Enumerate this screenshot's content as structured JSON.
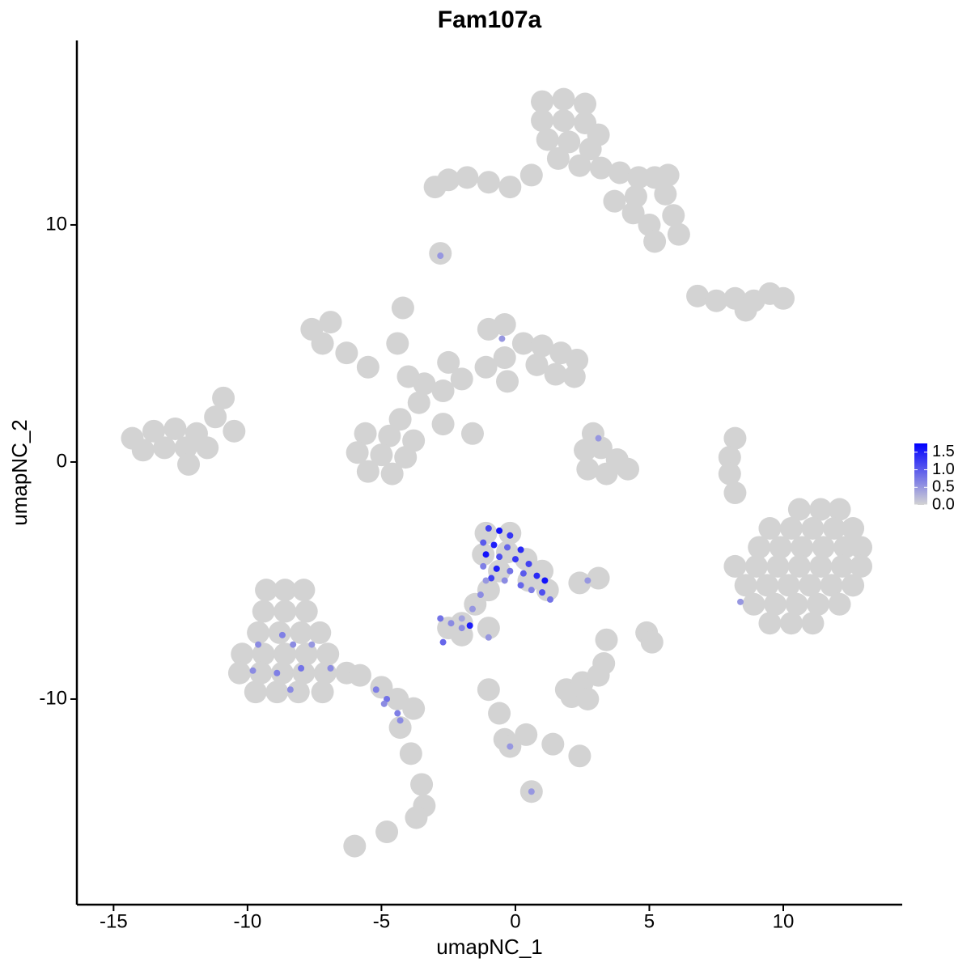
{
  "chart_data": {
    "type": "scatter",
    "title": "Fam107a",
    "x_label": "umapNC_1",
    "y_label": "umapNC_2",
    "xlim": [
      -16.37,
      14.44
    ],
    "ylim": [
      -18.67,
      17.78
    ],
    "xticks": [
      -15,
      -10,
      -5,
      0,
      5,
      10
    ],
    "yticks": [
      -10,
      0,
      10
    ],
    "low_color": "#d3d3d3",
    "high_color": "#0000ff",
    "colorbar_lim": [
      0,
      1.75
    ],
    "colorbar_ticks": [
      {
        "value": 0,
        "label": "0.0"
      },
      0.5,
      {
        "value": 1,
        "label": "1.0"
      },
      1.5
    ],
    "points": [
      {
        "x": 1.0,
        "y": 15.2,
        "value": 0
      },
      {
        "x": 1.8,
        "y": 15.3,
        "value": 0
      },
      {
        "x": 2.6,
        "y": 15.1,
        "value": 0
      },
      {
        "x": 1.0,
        "y": 14.4,
        "value": 0
      },
      {
        "x": 1.8,
        "y": 14.4,
        "value": 0
      },
      {
        "x": 2.6,
        "y": 14.3,
        "value": 0
      },
      {
        "x": 3.1,
        "y": 13.8,
        "value": 0
      },
      {
        "x": 1.2,
        "y": 13.6,
        "value": 0
      },
      {
        "x": 2.0,
        "y": 13.5,
        "value": 0
      },
      {
        "x": 2.8,
        "y": 13.2,
        "value": 0
      },
      {
        "x": 1.6,
        "y": 12.8,
        "value": 0
      },
      {
        "x": 2.4,
        "y": 12.5,
        "value": 0
      },
      {
        "x": 3.2,
        "y": 12.4,
        "value": 0
      },
      {
        "x": 3.9,
        "y": 12.2,
        "value": 0
      },
      {
        "x": 4.6,
        "y": 12.0,
        "value": 0
      },
      {
        "x": 5.2,
        "y": 12.0,
        "value": 0
      },
      {
        "x": 5.7,
        "y": 12.1,
        "value": 0
      },
      {
        "x": 5.6,
        "y": 11.3,
        "value": 0
      },
      {
        "x": 5.9,
        "y": 10.4,
        "value": 0
      },
      {
        "x": 6.1,
        "y": 9.6,
        "value": 0
      },
      {
        "x": 5.0,
        "y": 10.0,
        "value": 0
      },
      {
        "x": 4.4,
        "y": 10.5,
        "value": 0
      },
      {
        "x": 3.7,
        "y": 11.0,
        "value": 0
      },
      {
        "x": 0.6,
        "y": 12.1,
        "value": 0
      },
      {
        "x": -0.2,
        "y": 11.6,
        "value": 0
      },
      {
        "x": -1.0,
        "y": 11.8,
        "value": 0
      },
      {
        "x": -1.8,
        "y": 12.0,
        "value": 0
      },
      {
        "x": -2.5,
        "y": 11.9,
        "value": 0
      },
      {
        "x": -3.0,
        "y": 11.6,
        "value": 0
      },
      {
        "x": 4.5,
        "y": 11.2,
        "value": 0
      },
      {
        "x": 5.2,
        "y": 9.3,
        "value": 0
      },
      {
        "x": -2.8,
        "y": 8.8,
        "value": 0
      },
      {
        "x": -1.0,
        "y": 5.6,
        "value": 0
      },
      {
        "x": -0.4,
        "y": 5.8,
        "value": 0
      },
      {
        "x": 0.3,
        "y": 5.0,
        "value": 0
      },
      {
        "x": 1.0,
        "y": 4.9,
        "value": 0
      },
      {
        "x": 1.7,
        "y": 4.6,
        "value": 0
      },
      {
        "x": 2.3,
        "y": 4.3,
        "value": 0
      },
      {
        "x": 2.2,
        "y": 3.6,
        "value": 0
      },
      {
        "x": 1.5,
        "y": 3.7,
        "value": 0
      },
      {
        "x": 0.8,
        "y": 4.1,
        "value": 0
      },
      {
        "x": -0.4,
        "y": 4.4,
        "value": 0
      },
      {
        "x": -1.1,
        "y": 4.0,
        "value": 0
      },
      {
        "x": -0.3,
        "y": 3.4,
        "value": 0
      },
      {
        "x": -2.0,
        "y": 3.5,
        "value": 0
      },
      {
        "x": -2.7,
        "y": 3.0,
        "value": 0
      },
      {
        "x": -3.4,
        "y": 3.3,
        "value": 0
      },
      {
        "x": -4.0,
        "y": 3.6,
        "value": 0
      },
      {
        "x": -3.6,
        "y": 2.5,
        "value": 0
      },
      {
        "x": -4.3,
        "y": 1.8,
        "value": 0
      },
      {
        "x": -2.7,
        "y": 1.6,
        "value": 0
      },
      {
        "x": -1.6,
        "y": 1.2,
        "value": 0
      },
      {
        "x": -4.2,
        "y": 6.5,
        "value": 0
      },
      {
        "x": -4.4,
        "y": 5.0,
        "value": 0
      },
      {
        "x": -2.5,
        "y": 4.2,
        "value": 0
      },
      {
        "x": -7.6,
        "y": 5.6,
        "value": 0
      },
      {
        "x": -6.9,
        "y": 5.9,
        "value": 0
      },
      {
        "x": -7.2,
        "y": 5.0,
        "value": 0
      },
      {
        "x": -6.3,
        "y": 4.6,
        "value": 0
      },
      {
        "x": -5.5,
        "y": 4.0,
        "value": 0
      },
      {
        "x": -5.6,
        "y": 1.2,
        "value": 0
      },
      {
        "x": -4.7,
        "y": 1.1,
        "value": 0
      },
      {
        "x": -3.8,
        "y": 0.9,
        "value": 0
      },
      {
        "x": -5.9,
        "y": 0.4,
        "value": 0
      },
      {
        "x": -5.0,
        "y": 0.3,
        "value": 0
      },
      {
        "x": -4.1,
        "y": 0.2,
        "value": 0
      },
      {
        "x": -5.5,
        "y": -0.4,
        "value": 0
      },
      {
        "x": -4.6,
        "y": -0.5,
        "value": 0
      },
      {
        "x": -14.3,
        "y": 1.0,
        "value": 0
      },
      {
        "x": -13.5,
        "y": 1.3,
        "value": 0
      },
      {
        "x": -12.7,
        "y": 1.4,
        "value": 0
      },
      {
        "x": -11.9,
        "y": 1.2,
        "value": 0
      },
      {
        "x": -13.9,
        "y": 0.5,
        "value": 0
      },
      {
        "x": -13.1,
        "y": 0.6,
        "value": 0
      },
      {
        "x": -12.3,
        "y": 0.6,
        "value": 0
      },
      {
        "x": -11.5,
        "y": 0.6,
        "value": 0
      },
      {
        "x": -11.2,
        "y": 1.9,
        "value": 0
      },
      {
        "x": -10.9,
        "y": 2.7,
        "value": 0
      },
      {
        "x": -10.5,
        "y": 1.3,
        "value": 0
      },
      {
        "x": -12.2,
        "y": -0.1,
        "value": 0
      },
      {
        "x": 6.8,
        "y": 7.0,
        "value": 0
      },
      {
        "x": 7.5,
        "y": 6.8,
        "value": 0
      },
      {
        "x": 8.2,
        "y": 6.9,
        "value": 0
      },
      {
        "x": 8.9,
        "y": 6.8,
        "value": 0
      },
      {
        "x": 9.5,
        "y": 7.1,
        "value": 0
      },
      {
        "x": 10.0,
        "y": 6.9,
        "value": 0
      },
      {
        "x": 8.6,
        "y": 6.4,
        "value": 0
      },
      {
        "x": 2.9,
        "y": 1.2,
        "value": 0
      },
      {
        "x": 2.6,
        "y": 0.5,
        "value": 0
      },
      {
        "x": 3.2,
        "y": 0.6,
        "value": 0
      },
      {
        "x": 3.8,
        "y": 0.1,
        "value": 0
      },
      {
        "x": 2.7,
        "y": -0.3,
        "value": 0
      },
      {
        "x": 3.4,
        "y": -0.5,
        "value": 0
      },
      {
        "x": 4.2,
        "y": -0.3,
        "value": 0
      },
      {
        "x": 8.2,
        "y": 1.0,
        "value": 0
      },
      {
        "x": 8.0,
        "y": 0.2,
        "value": 0
      },
      {
        "x": 8.0,
        "y": -0.5,
        "value": 0
      },
      {
        "x": 8.2,
        "y": -1.3,
        "value": 0
      },
      {
        "x": 10.6,
        "y": -2.0,
        "value": 0
      },
      {
        "x": 11.4,
        "y": -2.0,
        "value": 0
      },
      {
        "x": 12.1,
        "y": -2.0,
        "value": 0
      },
      {
        "x": 9.5,
        "y": -2.8,
        "value": 0
      },
      {
        "x": 10.3,
        "y": -2.8,
        "value": 0
      },
      {
        "x": 11.1,
        "y": -2.8,
        "value": 0
      },
      {
        "x": 11.9,
        "y": -2.8,
        "value": 0
      },
      {
        "x": 12.6,
        "y": -2.8,
        "value": 0
      },
      {
        "x": 9.1,
        "y": -3.6,
        "value": 0
      },
      {
        "x": 9.9,
        "y": -3.6,
        "value": 0
      },
      {
        "x": 10.7,
        "y": -3.6,
        "value": 0
      },
      {
        "x": 11.5,
        "y": -3.6,
        "value": 0
      },
      {
        "x": 12.3,
        "y": -3.6,
        "value": 0
      },
      {
        "x": 12.9,
        "y": -3.6,
        "value": 0
      },
      {
        "x": 8.2,
        "y": -4.4,
        "value": 0
      },
      {
        "x": 9.0,
        "y": -4.4,
        "value": 0
      },
      {
        "x": 9.8,
        "y": -4.4,
        "value": 0
      },
      {
        "x": 10.6,
        "y": -4.4,
        "value": 0
      },
      {
        "x": 11.4,
        "y": -4.4,
        "value": 0
      },
      {
        "x": 12.2,
        "y": -4.4,
        "value": 0
      },
      {
        "x": 12.9,
        "y": -4.4,
        "value": 0
      },
      {
        "x": 8.6,
        "y": -5.2,
        "value": 0
      },
      {
        "x": 9.4,
        "y": -5.2,
        "value": 0
      },
      {
        "x": 10.2,
        "y": -5.2,
        "value": 0
      },
      {
        "x": 11.0,
        "y": -5.2,
        "value": 0
      },
      {
        "x": 11.8,
        "y": -5.2,
        "value": 0
      },
      {
        "x": 12.6,
        "y": -5.2,
        "value": 0
      },
      {
        "x": 8.9,
        "y": -6.0,
        "value": 0
      },
      {
        "x": 9.7,
        "y": -6.0,
        "value": 0
      },
      {
        "x": 10.5,
        "y": -6.0,
        "value": 0
      },
      {
        "x": 11.3,
        "y": -6.0,
        "value": 0
      },
      {
        "x": 12.1,
        "y": -6.0,
        "value": 0
      },
      {
        "x": 9.5,
        "y": -6.8,
        "value": 0
      },
      {
        "x": 10.3,
        "y": -6.8,
        "value": 0
      },
      {
        "x": 11.1,
        "y": -6.8,
        "value": 0
      },
      {
        "x": -1.1,
        "y": -3.0,
        "value": 0
      },
      {
        "x": -0.2,
        "y": -3.0,
        "value": 0
      },
      {
        "x": -1.2,
        "y": -3.9,
        "value": 0
      },
      {
        "x": -0.3,
        "y": -3.8,
        "value": 0
      },
      {
        "x": 0.4,
        "y": -4.1,
        "value": 0
      },
      {
        "x": 1.0,
        "y": -4.6,
        "value": 0
      },
      {
        "x": -0.6,
        "y": -4.6,
        "value": 0
      },
      {
        "x": 0.5,
        "y": -5.0,
        "value": 0
      },
      {
        "x": 1.2,
        "y": -5.4,
        "value": 0
      },
      {
        "x": -1.0,
        "y": -5.4,
        "value": 0
      },
      {
        "x": -1.5,
        "y": -6.0,
        "value": 0
      },
      {
        "x": -2.0,
        "y": -6.8,
        "value": 0
      },
      {
        "x": -2.5,
        "y": -7.0,
        "value": 0
      },
      {
        "x": -2.0,
        "y": -7.3,
        "value": 0
      },
      {
        "x": -1.0,
        "y": -7.0,
        "value": 0
      },
      {
        "x": 2.4,
        "y": -5.1,
        "value": 0
      },
      {
        "x": 3.1,
        "y": -4.9,
        "value": 0
      },
      {
        "x": -9.3,
        "y": -5.4,
        "value": 0
      },
      {
        "x": -8.6,
        "y": -5.4,
        "value": 0
      },
      {
        "x": -7.9,
        "y": -5.4,
        "value": 0
      },
      {
        "x": -9.4,
        "y": -6.3,
        "value": 0
      },
      {
        "x": -8.6,
        "y": -6.3,
        "value": 0
      },
      {
        "x": -7.8,
        "y": -6.3,
        "value": 0
      },
      {
        "x": -9.6,
        "y": -7.2,
        "value": 0
      },
      {
        "x": -8.8,
        "y": -7.2,
        "value": 0
      },
      {
        "x": -8.0,
        "y": -7.2,
        "value": 0
      },
      {
        "x": -7.3,
        "y": -7.2,
        "value": 0
      },
      {
        "x": -10.2,
        "y": -8.1,
        "value": 0
      },
      {
        "x": -9.4,
        "y": -8.1,
        "value": 0
      },
      {
        "x": -8.6,
        "y": -8.1,
        "value": 0
      },
      {
        "x": -7.8,
        "y": -8.1,
        "value": 0
      },
      {
        "x": -7.0,
        "y": -8.1,
        "value": 0
      },
      {
        "x": -10.3,
        "y": -8.9,
        "value": 0
      },
      {
        "x": -9.5,
        "y": -8.9,
        "value": 0
      },
      {
        "x": -8.7,
        "y": -8.9,
        "value": 0
      },
      {
        "x": -7.9,
        "y": -8.9,
        "value": 0
      },
      {
        "x": -7.1,
        "y": -8.9,
        "value": 0
      },
      {
        "x": -6.3,
        "y": -8.9,
        "value": 0
      },
      {
        "x": -9.7,
        "y": -9.7,
        "value": 0
      },
      {
        "x": -8.9,
        "y": -9.7,
        "value": 0
      },
      {
        "x": -8.1,
        "y": -9.7,
        "value": 0
      },
      {
        "x": -7.2,
        "y": -9.7,
        "value": 0
      },
      {
        "x": -5.8,
        "y": -9.0,
        "value": 0
      },
      {
        "x": -5.0,
        "y": -9.5,
        "value": 0
      },
      {
        "x": -4.4,
        "y": -10.0,
        "value": 0
      },
      {
        "x": -3.8,
        "y": -10.4,
        "value": 0
      },
      {
        "x": -4.3,
        "y": -11.2,
        "value": 0
      },
      {
        "x": -3.9,
        "y": -12.3,
        "value": 0
      },
      {
        "x": -3.5,
        "y": -13.6,
        "value": 0
      },
      {
        "x": -3.4,
        "y": -14.5,
        "value": 0
      },
      {
        "x": -3.7,
        "y": -15.0,
        "value": 0
      },
      {
        "x": -6.0,
        "y": -16.2,
        "value": 0
      },
      {
        "x": -4.8,
        "y": -15.6,
        "value": 0
      },
      {
        "x": -1.0,
        "y": -9.6,
        "value": 0
      },
      {
        "x": -0.6,
        "y": -10.6,
        "value": 0
      },
      {
        "x": -0.4,
        "y": -11.7,
        "value": 0
      },
      {
        "x": 0.4,
        "y": -11.5,
        "value": 0
      },
      {
        "x": 1.4,
        "y": -11.9,
        "value": 0
      },
      {
        "x": 2.4,
        "y": -12.4,
        "value": 0
      },
      {
        "x": -0.2,
        "y": -12.0,
        "value": 0
      },
      {
        "x": 0.6,
        "y": -13.9,
        "value": 0
      },
      {
        "x": 1.9,
        "y": -9.6,
        "value": 0
      },
      {
        "x": 2.5,
        "y": -9.3,
        "value": 0
      },
      {
        "x": 3.1,
        "y": -9.0,
        "value": 0
      },
      {
        "x": 3.3,
        "y": -8.5,
        "value": 0
      },
      {
        "x": 2.1,
        "y": -9.9,
        "value": 0
      },
      {
        "x": 2.7,
        "y": -10.0,
        "value": 0
      },
      {
        "x": 4.9,
        "y": -7.2,
        "value": 0
      },
      {
        "x": 5.1,
        "y": -7.6,
        "value": 0
      },
      {
        "x": 3.4,
        "y": -7.5,
        "value": 0
      },
      {
        "x": -1.0,
        "y": -2.8,
        "value": 1.2
      },
      {
        "x": -0.6,
        "y": -2.9,
        "value": 1.6
      },
      {
        "x": -0.2,
        "y": -3.1,
        "value": 1.3
      },
      {
        "x": -1.2,
        "y": -3.4,
        "value": 1.0
      },
      {
        "x": -0.8,
        "y": -3.5,
        "value": 1.5
      },
      {
        "x": -0.3,
        "y": -3.6,
        "value": 0.9
      },
      {
        "x": 0.2,
        "y": -3.7,
        "value": 1.4
      },
      {
        "x": -1.1,
        "y": -3.9,
        "value": 1.6
      },
      {
        "x": -0.6,
        "y": -4.0,
        "value": 1.1
      },
      {
        "x": 0.0,
        "y": -4.1,
        "value": 1.3
      },
      {
        "x": 0.5,
        "y": -4.3,
        "value": 1.2
      },
      {
        "x": -1.2,
        "y": -4.4,
        "value": 0.7
      },
      {
        "x": -0.7,
        "y": -4.5,
        "value": 1.5
      },
      {
        "x": -0.2,
        "y": -4.6,
        "value": 0.8
      },
      {
        "x": 0.3,
        "y": -4.7,
        "value": 1.0
      },
      {
        "x": 0.8,
        "y": -4.8,
        "value": 1.4
      },
      {
        "x": 1.1,
        "y": -5.0,
        "value": 1.6
      },
      {
        "x": -0.9,
        "y": -4.9,
        "value": 1.2
      },
      {
        "x": -0.4,
        "y": -5.0,
        "value": 0.6
      },
      {
        "x": 0.2,
        "y": -5.2,
        "value": 0.9
      },
      {
        "x": 1.0,
        "y": -5.5,
        "value": 1.1
      },
      {
        "x": 1.3,
        "y": -5.8,
        "value": 0.8
      },
      {
        "x": 0.6,
        "y": -5.4,
        "value": 0.7
      },
      {
        "x": -1.1,
        "y": -5.0,
        "value": 0.5
      },
      {
        "x": -1.3,
        "y": -5.6,
        "value": 0.6
      },
      {
        "x": -1.6,
        "y": -6.2,
        "value": 0.5
      },
      {
        "x": -2.0,
        "y": -6.6,
        "value": 0.4
      },
      {
        "x": -2.8,
        "y": -6.6,
        "value": 0.8
      },
      {
        "x": -2.4,
        "y": -6.8,
        "value": 0.6
      },
      {
        "x": -1.7,
        "y": -6.9,
        "value": 1.5
      },
      {
        "x": -2.7,
        "y": -7.6,
        "value": 0.9
      },
      {
        "x": -2.0,
        "y": -7.0,
        "value": 0.6
      },
      {
        "x": -1.0,
        "y": -7.4,
        "value": 0.5
      },
      {
        "x": -9.6,
        "y": -7.7,
        "value": 0.6
      },
      {
        "x": -8.7,
        "y": -7.3,
        "value": 0.7
      },
      {
        "x": -8.3,
        "y": -7.7,
        "value": 0.6
      },
      {
        "x": -7.6,
        "y": -7.7,
        "value": 0.5
      },
      {
        "x": -9.8,
        "y": -8.8,
        "value": 0.6
      },
      {
        "x": -8.9,
        "y": -8.9,
        "value": 0.7
      },
      {
        "x": -8.0,
        "y": -8.7,
        "value": 0.8
      },
      {
        "x": -6.9,
        "y": -8.7,
        "value": 0.6
      },
      {
        "x": -8.4,
        "y": -9.6,
        "value": 0.6
      },
      {
        "x": -5.2,
        "y": -9.6,
        "value": 0.7
      },
      {
        "x": -4.8,
        "y": -10.0,
        "value": 0.8
      },
      {
        "x": -4.4,
        "y": -10.6,
        "value": 0.7
      },
      {
        "x": -4.9,
        "y": -10.2,
        "value": 0.6
      },
      {
        "x": -4.3,
        "y": -10.9,
        "value": 0.6
      },
      {
        "x": -2.8,
        "y": 8.7,
        "value": 0.5
      },
      {
        "x": -0.5,
        "y": 5.2,
        "value": 0.5
      },
      {
        "x": 3.1,
        "y": 1.0,
        "value": 0.5
      },
      {
        "x": 8.4,
        "y": -5.9,
        "value": 0.5
      },
      {
        "x": 2.7,
        "y": -5.0,
        "value": 0.5
      },
      {
        "x": -0.2,
        "y": -12.0,
        "value": 0.5
      },
      {
        "x": 0.6,
        "y": -13.9,
        "value": 0.5
      }
    ]
  }
}
